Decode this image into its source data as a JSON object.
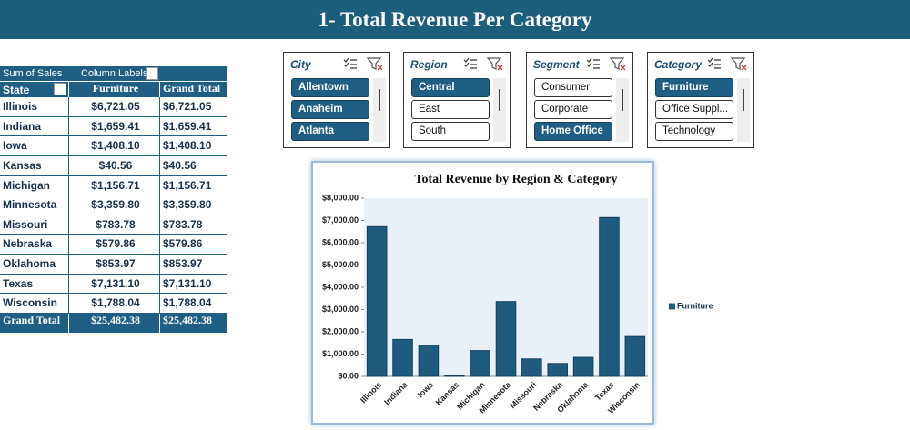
{
  "header": {
    "title": "1- Total Revenue Per Category"
  },
  "pivot_table": {
    "corner": "Sum of Sales",
    "column_labels": "Column Labels",
    "row_header": "State",
    "columns": [
      "Furniture",
      "Grand Total"
    ],
    "rows": [
      [
        "Illinois",
        "$6,721.05",
        "$6,721.05"
      ],
      [
        "Indiana",
        "$1,659.41",
        "$1,659.41"
      ],
      [
        "Iowa",
        "$1,408.10",
        "$1,408.10"
      ],
      [
        "Kansas",
        "$40.56",
        "$40.56"
      ],
      [
        "Michigan",
        "$1,156.71",
        "$1,156.71"
      ],
      [
        "Minnesota",
        "$3,359.80",
        "$3,359.80"
      ],
      [
        "Missouri",
        "$783.78",
        "$783.78"
      ],
      [
        "Nebraska",
        "$579.86",
        "$579.86"
      ],
      [
        "Oklahoma",
        "$853.97",
        "$853.97"
      ],
      [
        "Texas",
        "$7,131.10",
        "$7,131.10"
      ],
      [
        "Wisconsin",
        "$1,788.04",
        "$1,788.04"
      ]
    ],
    "total": [
      "Grand Total",
      "$25,482.38",
      "$25,482.38"
    ]
  },
  "slicers": [
    {
      "title": "City",
      "items": [
        {
          "label": "Allentown",
          "selected": true
        },
        {
          "label": "Anaheim",
          "selected": true
        },
        {
          "label": "Atlanta",
          "selected": true
        }
      ]
    },
    {
      "title": "Region",
      "items": [
        {
          "label": "Central",
          "selected": true
        },
        {
          "label": "East",
          "selected": false
        },
        {
          "label": "South",
          "selected": false
        }
      ]
    },
    {
      "title": "Segment",
      "items": [
        {
          "label": "Consumer",
          "selected": false
        },
        {
          "label": "Corporate",
          "selected": false
        },
        {
          "label": "Home Office",
          "selected": true
        }
      ]
    },
    {
      "title": "Category",
      "items": [
        {
          "label": "Furniture",
          "selected": true
        },
        {
          "label": "Office Suppl...",
          "selected": false
        },
        {
          "label": "Technology",
          "selected": false
        }
      ]
    }
  ],
  "chart_data": {
    "type": "bar",
    "title": "Total Revenue by Region & Category",
    "categories": [
      "Illinois",
      "Indiana",
      "Iowa",
      "Kansas",
      "Michigan",
      "Minnesota",
      "Missouri",
      "Nebraska",
      "Oklahoma",
      "Texas",
      "Wisconsin"
    ],
    "series": [
      {
        "name": "Furniture",
        "color": "#1f5b7e",
        "values": [
          6721.05,
          1659.41,
          1408.1,
          40.56,
          1156.71,
          3359.8,
          783.78,
          579.86,
          853.97,
          7131.1,
          1788.04
        ]
      }
    ],
    "ylim": [
      0,
      8000
    ],
    "yticks": [
      {
        "value": 0,
        "label": "$0.00"
      },
      {
        "value": 1000,
        "label": "$1,000.00"
      },
      {
        "value": 2000,
        "label": "$2,000.00"
      },
      {
        "value": 3000,
        "label": "$3,000.00"
      },
      {
        "value": 4000,
        "label": "$4,000.00"
      },
      {
        "value": 5000,
        "label": "$5,000.00"
      },
      {
        "value": 6000,
        "label": "$6,000.00"
      },
      {
        "value": 7000,
        "label": "$7,000.00"
      },
      {
        "value": 8000,
        "label": "$8,000.00"
      }
    ],
    "legend": "right"
  }
}
